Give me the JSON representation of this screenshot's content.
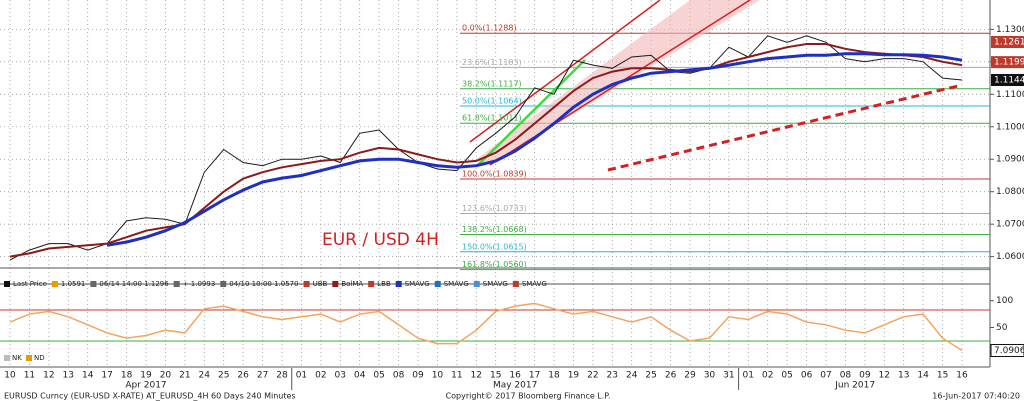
{
  "chart_data": [
    {
      "type": "line",
      "title": "EUR / USD 4H",
      "categories": [
        "10",
        "11",
        "12",
        "13",
        "14",
        "17",
        "18",
        "19",
        "20",
        "21",
        "24",
        "25",
        "26",
        "27",
        "28",
        "01",
        "02",
        "03",
        "04",
        "05",
        "08",
        "09",
        "10",
        "11",
        "12",
        "15",
        "16",
        "17",
        "18",
        "19",
        "22",
        "23",
        "24",
        "25",
        "26",
        "29",
        "30",
        "31",
        "01",
        "02",
        "05",
        "06",
        "07",
        "08",
        "09",
        "12",
        "13",
        "14",
        "15",
        "16"
      ],
      "months": [
        "Apr 2017",
        "May 2017",
        "Jun 2017"
      ],
      "ylim": [
        1.0565,
        1.1375
      ],
      "yticks": [
        {
          "value": 1.13,
          "label": "1.1300"
        },
        {
          "value": 1.12,
          "label": "1.1200"
        },
        {
          "value": 1.11,
          "label": "1.1100"
        },
        {
          "value": 1.1,
          "label": "1.1000"
        },
        {
          "value": 1.09,
          "label": "1.0900"
        },
        {
          "value": 1.08,
          "label": "1.0800"
        },
        {
          "value": 1.07,
          "label": "1.0700"
        },
        {
          "value": 1.06,
          "label": "1.0600"
        }
      ],
      "grid": true,
      "series": [
        {
          "name": "Last Price",
          "color": "#1a1a1a",
          "width": 1,
          "values": [
            1.059,
            1.062,
            1.064,
            1.064,
            1.062,
            1.064,
            1.071,
            1.072,
            1.0715,
            1.07,
            1.086,
            1.093,
            1.089,
            1.088,
            1.09,
            1.09,
            1.091,
            1.089,
            1.098,
            1.099,
            1.093,
            1.089,
            1.087,
            1.0865,
            1.0935,
            1.098,
            1.103,
            1.112,
            1.11,
            1.1205,
            1.119,
            1.118,
            1.1215,
            1.122,
            1.117,
            1.1165,
            1.118,
            1.1245,
            1.1215,
            1.128,
            1.126,
            1.128,
            1.126,
            1.121,
            1.12,
            1.121,
            1.121,
            1.12,
            1.115,
            1.1144
          ]
        },
        {
          "name": "BolMA",
          "color": "#8b1a1a",
          "width": 2,
          "values": [
            1.06,
            1.061,
            1.0625,
            1.063,
            1.0635,
            1.064,
            1.066,
            1.068,
            1.069,
            1.07,
            1.075,
            1.08,
            1.084,
            1.086,
            1.0875,
            1.0885,
            1.0895,
            1.09,
            1.092,
            1.0935,
            1.093,
            1.0915,
            1.09,
            1.089,
            1.0895,
            1.092,
            1.096,
            1.101,
            1.106,
            1.111,
            1.115,
            1.117,
            1.118,
            1.118,
            1.1175,
            1.117,
            1.118,
            1.12,
            1.1215,
            1.123,
            1.1245,
            1.1255,
            1.1255,
            1.124,
            1.123,
            1.1225,
            1.122,
            1.1215,
            1.12,
            1.119
          ]
        },
        {
          "name": "SMAVG",
          "color": "#1f2fbf",
          "width": 3,
          "values": [
            null,
            null,
            null,
            null,
            null,
            1.0635,
            1.0645,
            1.066,
            1.068,
            1.0705,
            1.074,
            1.0775,
            1.0805,
            1.083,
            1.0842,
            1.085,
            1.0865,
            1.088,
            1.0895,
            1.09,
            1.09,
            1.089,
            1.088,
            1.0875,
            1.088,
            1.0895,
            1.0925,
            1.0965,
            1.101,
            1.106,
            1.11,
            1.113,
            1.115,
            1.1165,
            1.117,
            1.1175,
            1.118,
            1.119,
            1.12,
            1.121,
            1.1215,
            1.122,
            1.122,
            1.1225,
            1.1225,
            1.1222,
            1.1222,
            1.122,
            1.1215,
            1.1205
          ]
        }
      ],
      "fib_levels": [
        {
          "label": "0.0%(1.1288)",
          "value": 1.1288,
          "color": "#c0392b"
        },
        {
          "label": "23.6%(1.1183)",
          "value": 1.1183,
          "color": "#aaaaaa"
        },
        {
          "label": "38.2%(1.1117)",
          "value": 1.1117,
          "color": "#3cb043"
        },
        {
          "label": "50.0%(1.1064)",
          "value": 1.1064,
          "color": "#29b6d6"
        },
        {
          "label": "61.8%(1.1011)",
          "value": 1.1011,
          "color": "#3cb043"
        },
        {
          "label": "100.0%(1.0839)",
          "value": 1.0839,
          "color": "#c0392b"
        },
        {
          "label": "123.6%(1.0733)",
          "value": 1.0733,
          "color": "#aaaaaa"
        },
        {
          "label": "138.2%(1.0668)",
          "value": 1.0668,
          "color": "#3cb043"
        },
        {
          "label": "150.0%(1.0615)",
          "value": 1.0615,
          "color": "#29b6d6"
        },
        {
          "label": "161.8%(1.0560)",
          "value": 1.056,
          "color": "#3cb043"
        }
      ],
      "price_labels": [
        {
          "value": 1.1261,
          "color": "#c0392b"
        },
        {
          "value": 1.1199,
          "color": "#c0392b"
        },
        {
          "value": 1.1144,
          "color": "#111111"
        }
      ],
      "legend": [
        "Last Price",
        "1.0591",
        "06/14 14:00 1.1296",
        "+ 1.0993",
        "04/10 10:00 1.0570",
        "UBB",
        "BolMA",
        "LBB",
        "SMAVG",
        "SMAVG",
        "SMAVG",
        "SMAVG"
      ]
    },
    {
      "type": "line",
      "ylim": [
        -20,
        120
      ],
      "yticks": [
        100,
        50
      ],
      "series": [
        {
          "name": "NK",
          "color": "#f4a460",
          "values": [
            60,
            75,
            80,
            70,
            55,
            40,
            30,
            35,
            45,
            40,
            85,
            90,
            80,
            70,
            65,
            70,
            75,
            60,
            75,
            80,
            55,
            30,
            20,
            20,
            45,
            80,
            90,
            95,
            85,
            75,
            80,
            70,
            60,
            70,
            45,
            25,
            30,
            70,
            65,
            80,
            75,
            60,
            55,
            45,
            40,
            55,
            70,
            75,
            30,
            7.0906
          ]
        }
      ],
      "legend": [
        "NK",
        "ND"
      ]
    }
  ],
  "footer": {
    "left": "EURUSD Curncy (EUR-USD X-RATE) AT_EURUSD_4H 60 Days 240 Minutes",
    "center": "Copyright© 2017 Bloomberg Finance L.P.",
    "right": "16-Jun-2017 07:40:20"
  }
}
